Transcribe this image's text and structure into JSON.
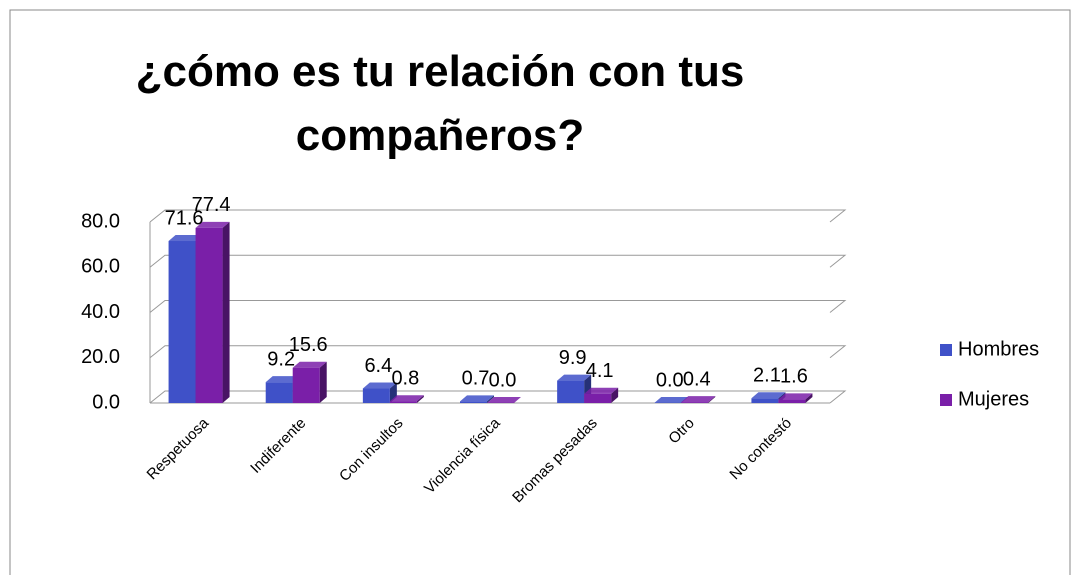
{
  "chart_data": {
    "type": "bar",
    "title": "¿cómo es tu relación con tus compañeros?",
    "categories": [
      "Respetuosa",
      "Indiferente",
      "Con insultos",
      "Violencia física",
      "Bromas pesadas",
      "Otro",
      "No contestó"
    ],
    "series": [
      {
        "name": "Hombres",
        "color": "#3f51c8",
        "values": [
          71.6,
          9.2,
          6.4,
          0.7,
          9.9,
          0.0,
          2.1
        ],
        "value_labels": [
          "71.6",
          "9.2",
          "6.4",
          "0.7",
          "9.9",
          "0.0",
          "2.1"
        ]
      },
      {
        "name": "Mujeres",
        "color": "#7a1fa8",
        "values": [
          77.4,
          15.6,
          0.8,
          0.0,
          4.1,
          0.4,
          1.6
        ],
        "value_labels": [
          "77.4",
          "15.6",
          "0.8",
          "0.0",
          "4.1",
          "0.4",
          "1.6"
        ]
      }
    ],
    "ylim": [
      0,
      80
    ],
    "yticks": [
      {
        "value": 0,
        "label": "0.0"
      },
      {
        "value": 20,
        "label": "20.0"
      },
      {
        "value": 40,
        "label": "40.0"
      },
      {
        "value": 60,
        "label": "60.0"
      },
      {
        "value": 80,
        "label": "80.0"
      }
    ],
    "grid": true,
    "legend": "right"
  }
}
